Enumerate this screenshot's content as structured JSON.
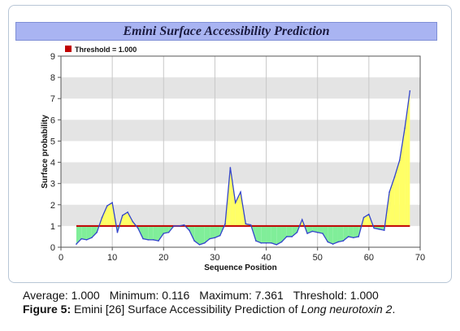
{
  "chart_data": {
    "type": "area",
    "title": "Emini Surface Accessibility Prediction",
    "xlabel": "Sequence Position",
    "ylabel": "Surface probability",
    "xlim": [
      0,
      70
    ],
    "ylim": [
      0,
      9
    ],
    "x_ticks": [
      "0",
      "10",
      "20",
      "30",
      "40",
      "50",
      "60",
      "70"
    ],
    "y_ticks": [
      "0",
      "1",
      "2",
      "3",
      "4",
      "5",
      "6",
      "7",
      "8",
      "9"
    ],
    "grid": "alternating horizontal bands with vertical gridlines",
    "legend_position": "top-left",
    "threshold": {
      "name": "Threshold = 1.000",
      "value": 1.0,
      "x_range": [
        3,
        68
      ]
    },
    "series": [
      {
        "x": [
          3,
          4,
          5,
          6,
          7,
          8,
          9,
          10,
          11,
          12,
          13,
          14,
          15,
          16,
          17,
          18,
          19,
          20,
          21,
          22,
          23,
          24,
          25,
          26,
          27,
          28,
          29,
          30,
          31,
          32,
          33,
          34,
          35,
          36,
          37,
          38,
          39,
          40,
          41,
          42,
          43,
          44,
          45,
          46,
          47,
          48,
          49,
          50,
          51,
          52,
          53,
          54,
          55,
          56,
          57,
          58,
          59,
          60,
          61,
          62,
          63,
          64,
          65,
          66,
          67,
          68
        ],
        "y": [
          0.15,
          0.4,
          0.35,
          0.45,
          0.7,
          1.4,
          1.95,
          2.1,
          0.7,
          1.5,
          1.65,
          1.2,
          0.9,
          0.4,
          0.35,
          0.35,
          0.3,
          0.65,
          0.7,
          1.0,
          1.0,
          1.05,
          0.8,
          0.3,
          0.12,
          0.2,
          0.4,
          0.45,
          0.55,
          1.1,
          3.75,
          2.1,
          2.6,
          1.1,
          1.05,
          0.3,
          0.2,
          0.2,
          0.2,
          0.12,
          0.25,
          0.5,
          0.5,
          0.7,
          1.3,
          0.65,
          0.75,
          0.7,
          0.65,
          0.25,
          0.15,
          0.25,
          0.3,
          0.5,
          0.45,
          0.5,
          1.4,
          1.55,
          0.9,
          0.85,
          0.8,
          2.6,
          3.3,
          4.1,
          5.6,
          7.361
        ]
      }
    ],
    "colors": {
      "line": "#3344cc",
      "threshold": "#c00000",
      "fill_above": "#ffff66",
      "fill_below": "#80ee99",
      "band": "#e4e4e4",
      "title_bar": "#a9b4f2"
    }
  },
  "caption": {
    "average": "Average: 1.000",
    "minimum": "Minimum: 0.116",
    "maximum": "Maximum: 7.361",
    "threshold": "Threshold: 1.000",
    "figure_label": "Figure 5:",
    "figure_text": " Emini [26] Surface Accessibility Prediction of ",
    "species": "Long neurotoxin 2",
    "end": "."
  }
}
